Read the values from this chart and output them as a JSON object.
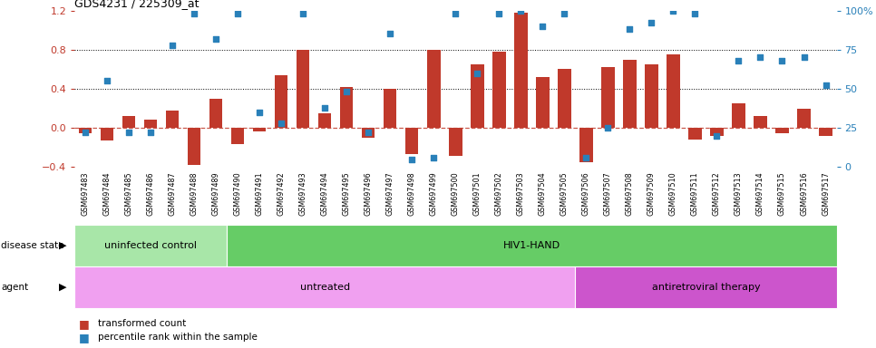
{
  "title": "GDS4231 / 225309_at",
  "samples": [
    "GSM697483",
    "GSM697484",
    "GSM697485",
    "GSM697486",
    "GSM697487",
    "GSM697488",
    "GSM697489",
    "GSM697490",
    "GSM697491",
    "GSM697492",
    "GSM697493",
    "GSM697494",
    "GSM697495",
    "GSM697496",
    "GSM697497",
    "GSM697498",
    "GSM697499",
    "GSM697500",
    "GSM697501",
    "GSM697502",
    "GSM697503",
    "GSM697504",
    "GSM697505",
    "GSM697506",
    "GSM697507",
    "GSM697508",
    "GSM697509",
    "GSM697510",
    "GSM697511",
    "GSM697512",
    "GSM697513",
    "GSM697514",
    "GSM697515",
    "GSM697516",
    "GSM697517"
  ],
  "bar_values": [
    -0.05,
    -0.13,
    0.12,
    0.08,
    0.18,
    -0.38,
    0.3,
    -0.17,
    -0.04,
    0.54,
    0.8,
    0.15,
    0.42,
    -0.1,
    0.4,
    -0.27,
    0.8,
    -0.29,
    0.65,
    0.78,
    1.18,
    0.52,
    0.6,
    -0.35,
    0.62,
    0.7,
    0.65,
    0.75,
    -0.12,
    -0.08,
    0.25,
    0.12,
    -0.05,
    0.2,
    -0.08
  ],
  "dot_percentiles": [
    22,
    55,
    22,
    22,
    78,
    98,
    82,
    98,
    35,
    28,
    98,
    38,
    48,
    22,
    85,
    5,
    6,
    98,
    60,
    98,
    100,
    90,
    98,
    6,
    25,
    88,
    92,
    100,
    98,
    20,
    68,
    70,
    68,
    70,
    52
  ],
  "bar_color": "#c0392b",
  "dot_color": "#2980b9",
  "ylim_left": [
    -0.4,
    1.2
  ],
  "ylim_right": [
    0,
    100
  ],
  "yticks_left": [
    -0.4,
    0.0,
    0.4,
    0.8,
    1.2
  ],
  "yticks_right": [
    0,
    25,
    50,
    75,
    100
  ],
  "hlines": [
    0.4,
    0.8
  ],
  "disease_state_groups": [
    {
      "label": "uninfected control",
      "start": 0,
      "end": 7,
      "color": "#a8e6a8"
    },
    {
      "label": "HIV1-HAND",
      "start": 7,
      "end": 35,
      "color": "#66cc66"
    }
  ],
  "agent_groups": [
    {
      "label": "untreated",
      "start": 0,
      "end": 23,
      "color": "#f0a0f0"
    },
    {
      "label": "antiretroviral therapy",
      "start": 23,
      "end": 35,
      "color": "#cc55cc"
    }
  ],
  "legend_items": [
    {
      "label": "transformed count",
      "color": "#c0392b"
    },
    {
      "label": "percentile rank within the sample",
      "color": "#2980b9"
    }
  ],
  "bg_color": "#ffffff",
  "xtick_bg_color": "#cccccc"
}
